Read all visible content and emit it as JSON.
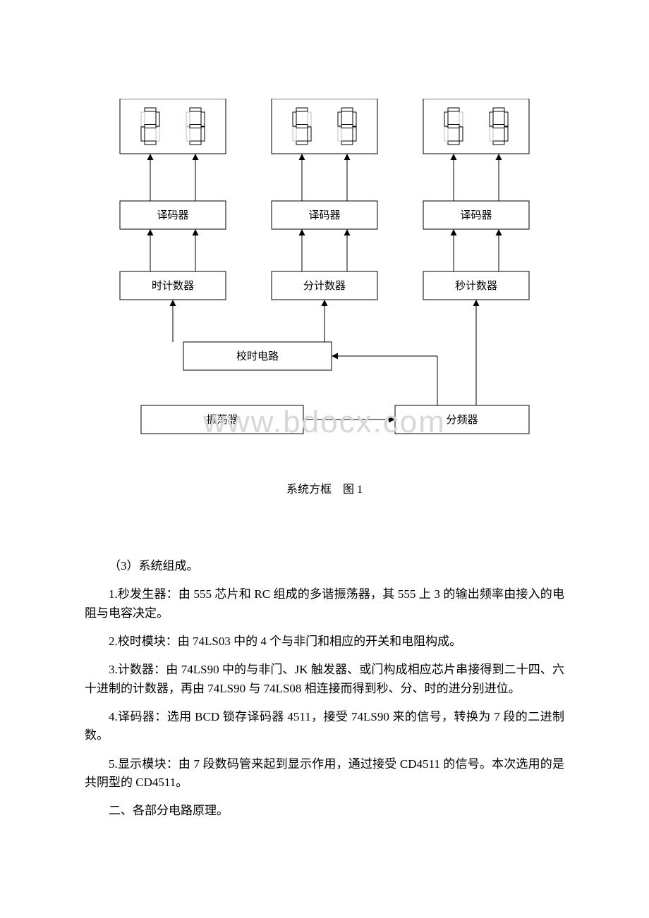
{
  "diagram": {
    "background": "#ffffff",
    "stroke": "#000000",
    "stroke_width": 1,
    "font_family": "SimSun",
    "label_fontsize": 15,
    "segment_off": "#ffffff",
    "segment_stroke": "#bfbfbf",
    "watermark": {
      "text": "www.bdocx.com",
      "color": "#d7d7d7",
      "fontsize": 44
    },
    "displays": [
      {
        "digits": "23"
      },
      {
        "digits": "59"
      },
      {
        "digits": "59"
      }
    ],
    "nodes": {
      "decoder_h": "译码器",
      "decoder_m": "译码器",
      "decoder_s": "译码器",
      "counter_h": "时计数器",
      "counter_m": "分计数器",
      "counter_s": "秒计数器",
      "timing": "校时电路",
      "osc": "振荡器",
      "divider": "分频器"
    },
    "caption": "系统方框 图 1"
  },
  "text": {
    "p_sec3": "（3）系统组成。",
    "p1": "1.秒发生器：由 555 芯片和 RC 组成的多谐振荡器，其 555 上 3 的输出频率由接入的电阻与电容决定。",
    "p2": "2.校时模块：由 74LS03 中的 4 个与非门和相应的开关和电阻构成。",
    "p3": "3.计数器：由 74LS90 中的与非门、JK 触发器、或门构成相应芯片串接得到二十四、六十进制的计数器，再由 74LS90 与 74LS08 相连接而得到秒、分、时的进分别进位。",
    "p4": "4.译码器：选用 BCD 锁存译码器 4511，接受 74LS90 来的信号，转换为 7 段的二进制数。",
    "p5": "5.显示模块：由 7 段数码管来起到显示作用，通过接受 CD4511 的信号。本次选用的是共阴型的 CD4511。",
    "p_sec2": "二、各部分电路原理。"
  }
}
